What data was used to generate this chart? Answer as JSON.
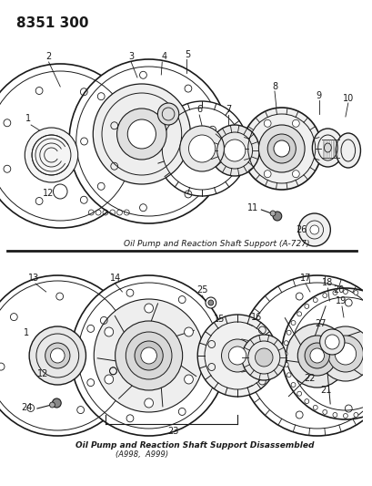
{
  "title": "8351 300",
  "bg_color": "#ffffff",
  "line_color": "#1a1a1a",
  "caption1": "Oil Pump and Reaction Shaft Support (A-727)",
  "caption2_line1": "Oil Pump and Reaction Shaft Support Disassembled",
  "caption2_line2": "(A998,  A999)"
}
